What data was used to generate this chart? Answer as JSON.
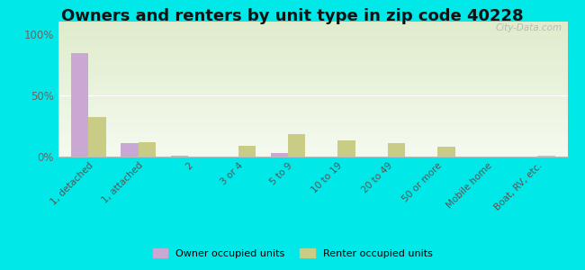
{
  "title": "Owners and renters by unit type in zip code 40228",
  "categories": [
    "1, detached",
    "1, attached",
    "2",
    "3 or 4",
    "5 to 9",
    "10 to 19",
    "20 to 49",
    "50 or more",
    "Mobile home",
    "Boat, RV, etc."
  ],
  "owner_values": [
    84,
    11,
    0.5,
    0.3,
    3,
    0,
    0,
    0,
    0,
    0
  ],
  "renter_values": [
    32,
    12,
    0,
    9,
    18,
    13,
    11,
    8,
    0,
    1
  ],
  "owner_color": "#c9a8d4",
  "renter_color": "#c8cc85",
  "outer_bg_color": "#00e8e8",
  "title_fontsize": 13,
  "yticks": [
    0,
    50,
    100
  ],
  "ylim": [
    0,
    110
  ],
  "legend_labels": [
    "Owner occupied units",
    "Renter occupied units"
  ],
  "watermark": "City-Data.com",
  "bar_width": 0.35
}
